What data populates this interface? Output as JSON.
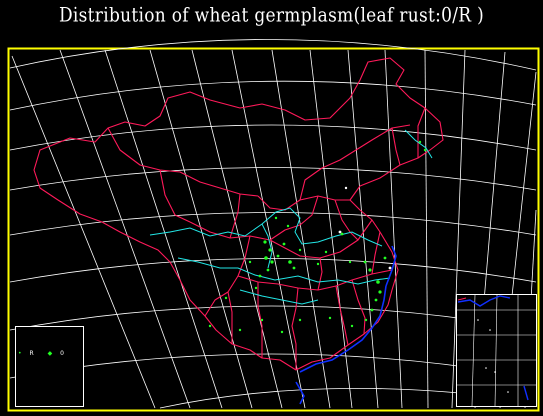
{
  "title": "Distribution of wheat germplasm(leaf rust:0/R )",
  "colors": {
    "background": "#000000",
    "frame": "#ffff00",
    "graticule": "#ffffff",
    "province_border": "#ff1a5a",
    "river_yellow": "#22e6e6",
    "coastline": "#1030ff",
    "specimen_points": "#22ff22"
  },
  "legend": {
    "items": [
      {
        "symbol": "•",
        "label": "R"
      },
      {
        "symbol": "◆",
        "label": "0"
      }
    ]
  },
  "icons": {
    "frame": "map-frame-rectangle",
    "legend_box": "legend-box",
    "inset": "south-china-sea-inset",
    "point": "specimen-point"
  }
}
